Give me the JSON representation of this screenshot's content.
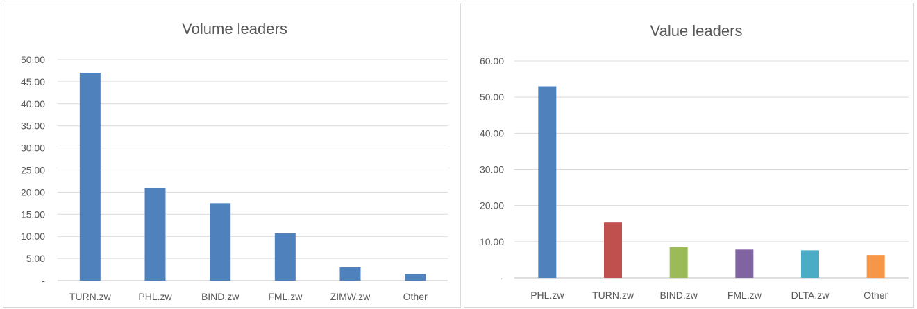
{
  "chart_data": [
    {
      "type": "bar",
      "title": "Volume leaders",
      "categories": [
        "TURN.zw",
        "PHL.zw",
        "BIND.zw",
        "FML.zw",
        "ZIMW.zw",
        "Other"
      ],
      "values": [
        47.0,
        20.9,
        17.5,
        10.7,
        3.0,
        1.5
      ],
      "colors": [
        "#4f81bd",
        "#4f81bd",
        "#4f81bd",
        "#4f81bd",
        "#4f81bd",
        "#4f81bd"
      ],
      "ylim": [
        0,
        50
      ],
      "yticks": [
        "-",
        "5.00",
        "10.00",
        "15.00",
        "20.00",
        "25.00",
        "30.00",
        "35.00",
        "40.00",
        "45.00",
        "50.00"
      ],
      "ytick_step": 5,
      "grid": true
    },
    {
      "type": "bar",
      "title": "Value leaders",
      "categories": [
        "PHL.zw",
        "TURN.zw",
        "BIND.zw",
        "FML.zw",
        "DLTA.zw",
        "Other"
      ],
      "values": [
        53.0,
        15.3,
        8.5,
        7.8,
        7.6,
        6.3
      ],
      "colors": [
        "#4f81bd",
        "#c0504d",
        "#9bbb59",
        "#8064a2",
        "#4bacc6",
        "#f79646"
      ],
      "ylim": [
        0,
        60
      ],
      "yticks": [
        "-",
        "10.00",
        "20.00",
        "30.00",
        "40.00",
        "50.00",
        "60.00"
      ],
      "ytick_step": 10,
      "grid": true
    }
  ]
}
